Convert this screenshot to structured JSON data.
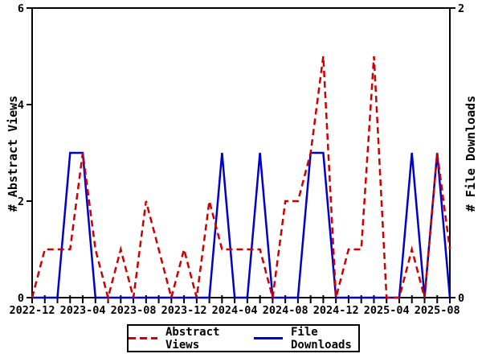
{
  "chart_data": {
    "type": "line",
    "title": "",
    "x": [
      "2022-12",
      "2023-01",
      "2023-02",
      "2023-03",
      "2023-04",
      "2023-05",
      "2023-06",
      "2023-07",
      "2023-08",
      "2023-09",
      "2023-10",
      "2023-11",
      "2023-12",
      "2024-01",
      "2024-02",
      "2024-03",
      "2024-04",
      "2024-05",
      "2024-06",
      "2024-07",
      "2024-08",
      "2024-09",
      "2024-10",
      "2024-11",
      "2024-12",
      "2025-01",
      "2025-02",
      "2025-03",
      "2025-04",
      "2025-05",
      "2025-06",
      "2025-07",
      "2025-08",
      "2025-09"
    ],
    "x_tick_labels": [
      "2022-12",
      "2023-04",
      "2023-08",
      "2023-12",
      "2024-04",
      "2024-08",
      "2024-12",
      "2025-04",
      "2025-08"
    ],
    "label_every_n_months": 4,
    "minor_tick_every_n_months": 1,
    "ylabel_left": "# Abstract Views",
    "ylabel_right": "# File Downloads",
    "ylim_left": [
      0,
      6
    ],
    "yticks_left": [
      "0",
      "2",
      "4",
      "6"
    ],
    "ylim_right": [
      0,
      2
    ],
    "yticks_right": [
      "0",
      "2"
    ],
    "grid": false,
    "legend_position": "bottom-center",
    "series": [
      {
        "name": "Abstract Views",
        "axis": "left",
        "color": "#cc0000",
        "line_style": "dashed",
        "values": [
          0,
          1,
          1,
          1,
          3,
          1,
          0,
          1,
          0,
          2,
          1,
          0,
          1,
          0,
          2,
          1,
          1,
          1,
          1,
          0,
          2,
          2,
          3,
          5,
          0,
          1,
          1,
          5,
          0,
          0,
          1,
          0,
          3,
          1
        ]
      },
      {
        "name": "File Downloads",
        "axis": "right",
        "color": "#0000cc",
        "line_style": "solid",
        "values": [
          0,
          0,
          0,
          1,
          1,
          0,
          0,
          0,
          0,
          0,
          0,
          0,
          0,
          0,
          0,
          1,
          0,
          0,
          1,
          0,
          0,
          0,
          1,
          1,
          0,
          0,
          0,
          0,
          0,
          0,
          1,
          0,
          1,
          0
        ]
      }
    ]
  },
  "colors": {
    "axis": "#000000",
    "background": "#ffffff"
  }
}
